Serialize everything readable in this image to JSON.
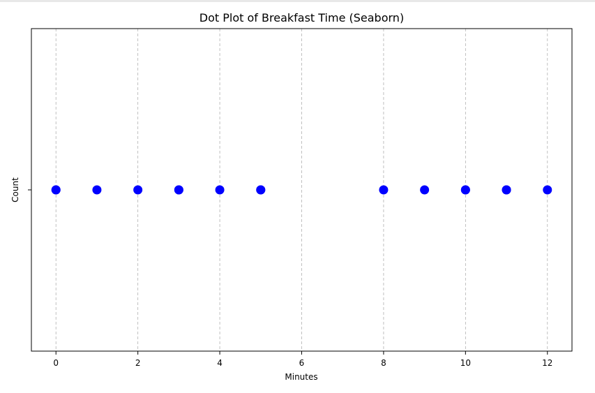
{
  "chart_data": {
    "type": "scatter",
    "title": "Dot Plot of Breakfast Time (Seaborn)",
    "xlabel": "Minutes",
    "ylabel": "Count",
    "xlim": [
      -0.6,
      12.6
    ],
    "xticks": [
      0,
      2,
      4,
      6,
      8,
      10,
      12
    ],
    "grid": "x-only dashed",
    "point_color": "#0000ff",
    "grid_color": "#b0b0b0",
    "series": [
      {
        "x": [
          0,
          0,
          1,
          2,
          3,
          3,
          4,
          5,
          5,
          8,
          9,
          10,
          10,
          11,
          11,
          12
        ],
        "y": [
          0,
          0,
          0,
          0,
          0,
          0,
          0,
          0,
          0,
          0,
          0,
          0,
          0,
          0,
          0,
          0
        ]
      }
    ]
  }
}
